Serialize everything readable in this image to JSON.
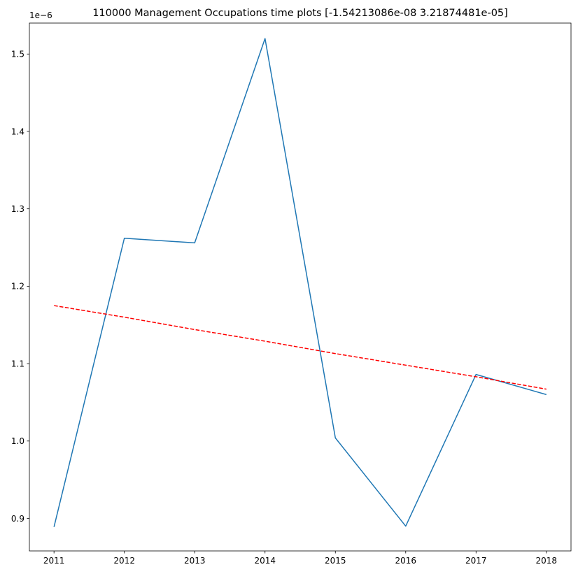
{
  "chart_data": {
    "type": "line",
    "title": "110000 Management Occupations time plots [-1.54213086e-08  3.21874481e-05]",
    "xlabel": "",
    "ylabel": "",
    "y_offset_label": "1e−6",
    "x": [
      2011,
      2012,
      2013,
      2014,
      2015,
      2016,
      2017,
      2018
    ],
    "xticks": [
      "2011",
      "2012",
      "2013",
      "2014",
      "2015",
      "2016",
      "2017",
      "2018"
    ],
    "yticks": [
      "0.9",
      "1.0",
      "1.1",
      "1.2",
      "1.3",
      "1.4",
      "1.5"
    ],
    "ytick_values": [
      0.9,
      1.0,
      1.1,
      1.2,
      1.3,
      1.4,
      1.5
    ],
    "xlim": [
      2010.65,
      2018.35
    ],
    "ylim": [
      0.858,
      1.54
    ],
    "grid": false,
    "series": [
      {
        "values": [
          0.889,
          1.262,
          1.256,
          1.52,
          1.004,
          0.89,
          1.086,
          1.06
        ],
        "color": "#1f77b4",
        "style": "solid"
      },
      {
        "values": [
          1.175,
          1.16,
          1.144,
          1.129,
          1.113,
          1.098,
          1.083,
          1.067
        ],
        "color": "#ff0000",
        "style": "dashed"
      }
    ]
  }
}
